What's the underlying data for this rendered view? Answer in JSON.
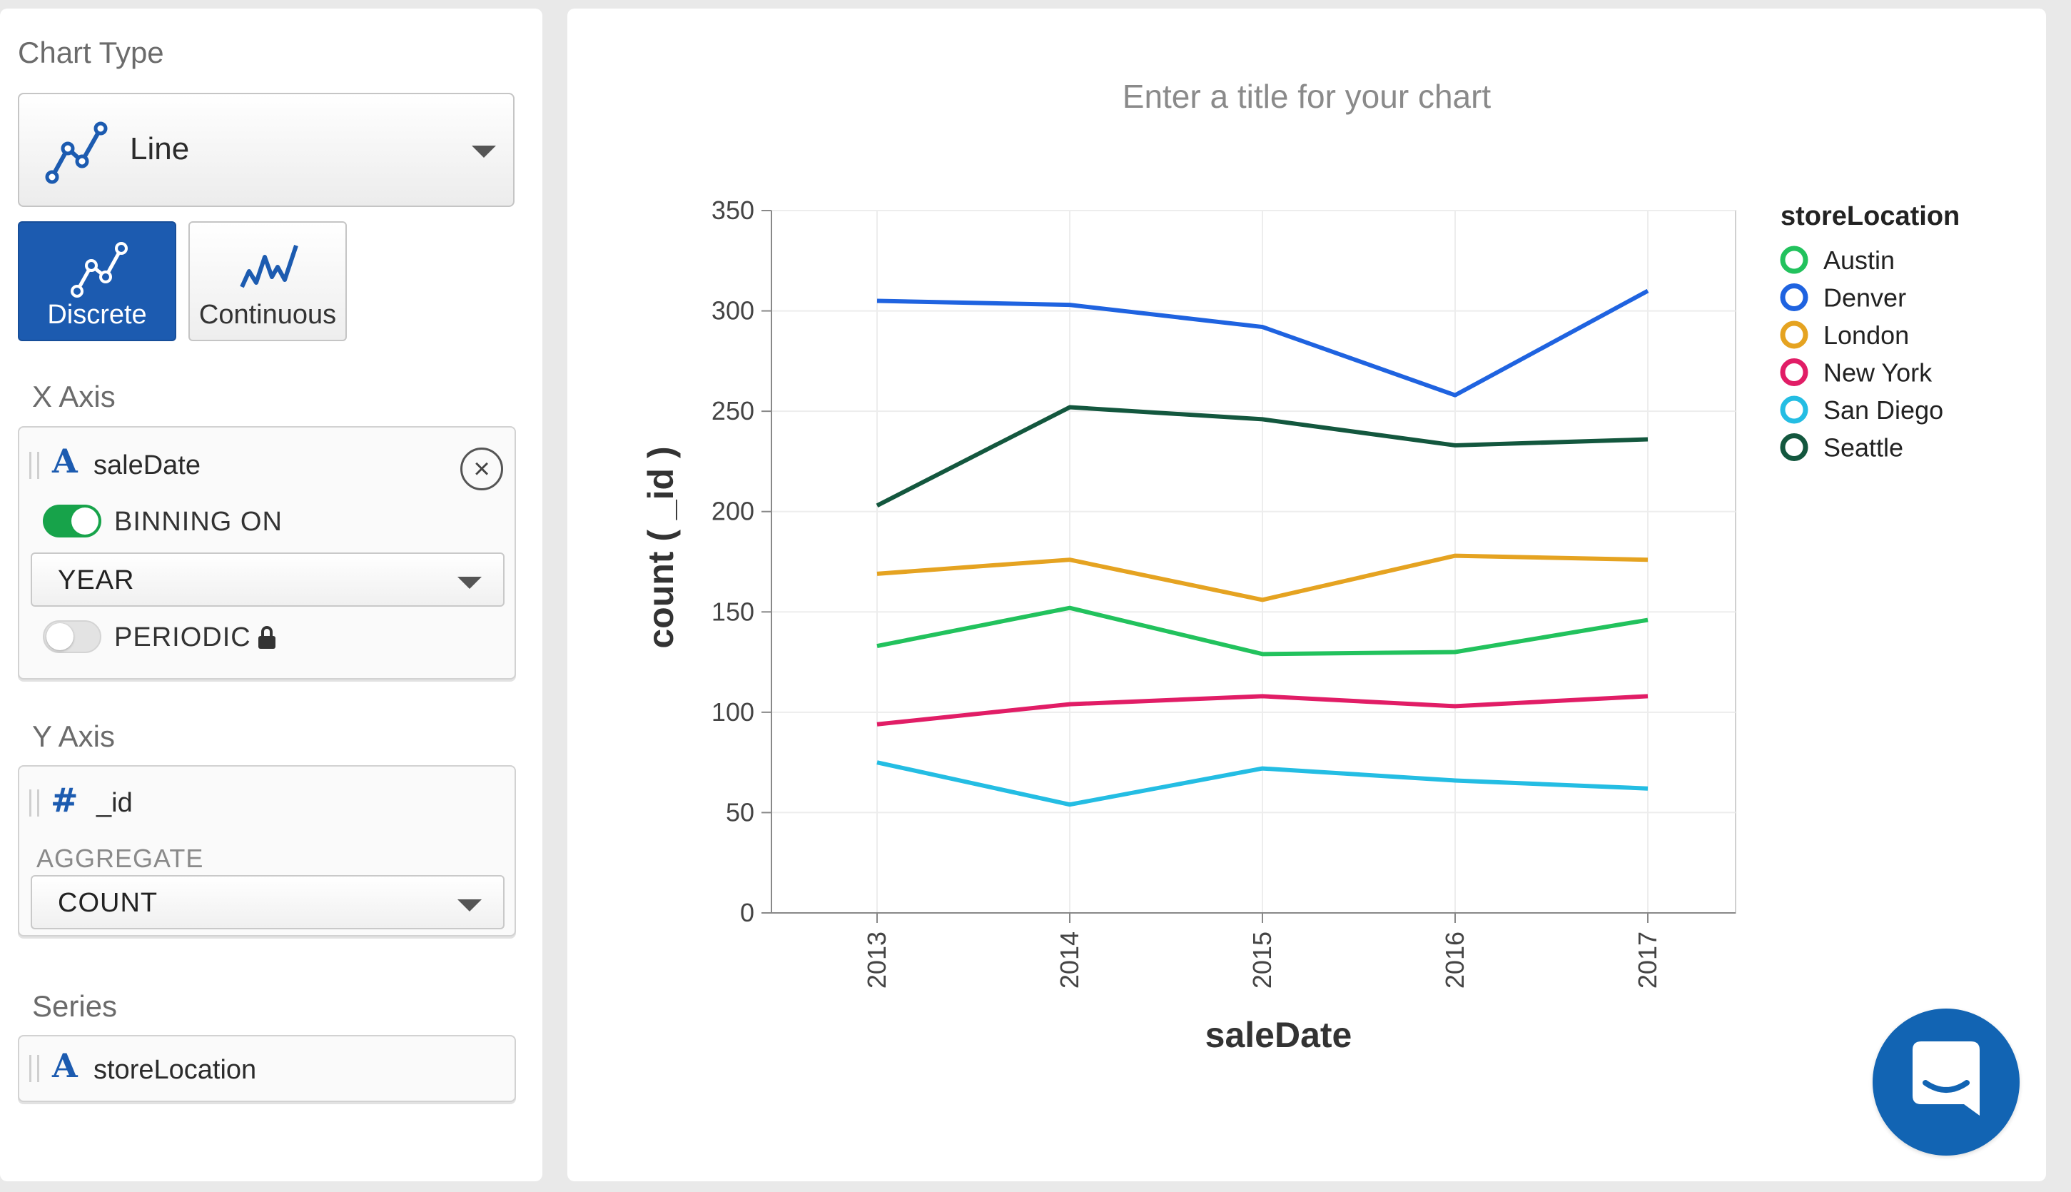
{
  "sidebar": {
    "chart_type_label": "Chart Type",
    "chart_type_value": "Line",
    "modes": [
      {
        "label": "Discrete",
        "selected": true
      },
      {
        "label": "Continuous",
        "selected": false
      }
    ],
    "x_axis": {
      "label": "X Axis",
      "field": "saleDate",
      "field_type_icon": "A",
      "binning_label": "BINNING ON",
      "binning_on": true,
      "bin_value": "YEAR",
      "periodic_label": "PERIODIC",
      "periodic_on": false
    },
    "y_axis": {
      "label": "Y Axis",
      "field": "_id",
      "field_type_icon": "#",
      "aggregate_label": "AGGREGATE",
      "aggregate_value": "COUNT"
    },
    "series": {
      "label": "Series",
      "field": "storeLocation",
      "field_type_icon": "A"
    }
  },
  "chart": {
    "title_placeholder": "Enter a title for your chart"
  },
  "chart_data": {
    "type": "line",
    "title": "",
    "xlabel": "saleDate",
    "ylabel": "count ( _id )",
    "x": [
      "2013",
      "2014",
      "2015",
      "2016",
      "2017"
    ],
    "ylim": [
      0,
      350
    ],
    "yticks": [
      0,
      50,
      100,
      150,
      200,
      250,
      300,
      350
    ],
    "grid": true,
    "legend_title": "storeLocation",
    "legend_position": "right",
    "series": [
      {
        "name": "Austin",
        "color": "#22c25d",
        "values": [
          133,
          152,
          129,
          130,
          146
        ]
      },
      {
        "name": "Denver",
        "color": "#1f63e0",
        "values": [
          305,
          303,
          292,
          258,
          310
        ]
      },
      {
        "name": "London",
        "color": "#e5a321",
        "values": [
          169,
          176,
          156,
          178,
          176
        ]
      },
      {
        "name": "New York",
        "color": "#e11d66",
        "values": [
          94,
          104,
          108,
          103,
          108
        ]
      },
      {
        "name": "San Diego",
        "color": "#24bde3",
        "values": [
          75,
          54,
          72,
          66,
          62
        ]
      },
      {
        "name": "Seattle",
        "color": "#13573e",
        "values": [
          203,
          252,
          246,
          233,
          236
        ]
      }
    ]
  },
  "icons": {
    "chart_type": "line-chart-icon",
    "discrete": "discrete-line-icon",
    "continuous": "continuous-line-icon",
    "remove": "close-circle-icon",
    "lock": "lock-icon",
    "chat": "chat-icon"
  },
  "colors": {
    "accent": "#1c5bb0",
    "toggle_on": "#17a34a",
    "chat_button": "#1264b3"
  }
}
